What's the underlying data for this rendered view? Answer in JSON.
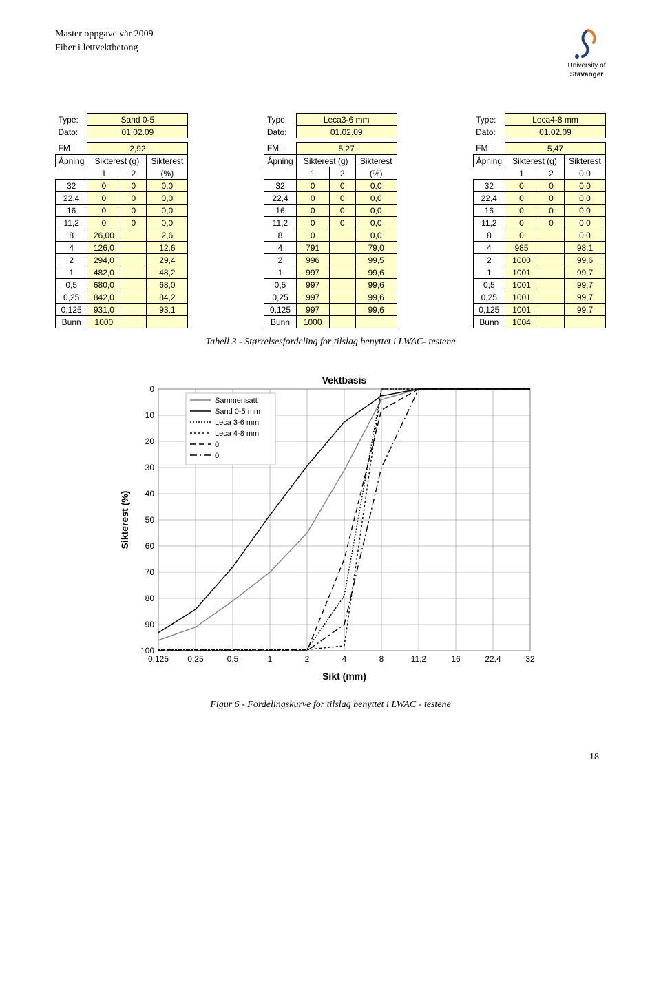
{
  "header": {
    "line1": "Master oppgave vår 2009",
    "line2": "Fiber i lettvektbetong",
    "logo_name": "University of Stavanger",
    "logo_line1": "University of",
    "logo_line2": "Stavanger"
  },
  "tables": [
    {
      "type_label": "Type:",
      "type_value": "Sand 0-5",
      "dato_label": "Dato:",
      "dato_value": "01.02.09",
      "fm_label": "FM=",
      "fm_value": "2,92",
      "col_apning": "Åpning",
      "col_sikterest_g": "Sikterest (g)",
      "col_sikterest": "Sikterest",
      "sub1": "1",
      "sub2": "2",
      "sub3": "(%)",
      "rows": [
        [
          "32",
          "0",
          "0",
          "0,0"
        ],
        [
          "22,4",
          "0",
          "0",
          "0,0"
        ],
        [
          "16",
          "0",
          "0",
          "0,0"
        ],
        [
          "11,2",
          "0",
          "0",
          "0,0"
        ],
        [
          "8",
          "26,00",
          "",
          "2,6"
        ],
        [
          "4",
          "126,0",
          "",
          "12,6"
        ],
        [
          "2",
          "294,0",
          "",
          "29,4"
        ],
        [
          "1",
          "482,0",
          "",
          "48,2"
        ],
        [
          "0,5",
          "680,0",
          "",
          "68,0"
        ],
        [
          "0,25",
          "842,0",
          "",
          "84,2"
        ],
        [
          "0,125",
          "931,0",
          "",
          "93,1"
        ],
        [
          "Bunn",
          "1000",
          "",
          ""
        ]
      ]
    },
    {
      "type_label": "Type:",
      "type_value": "Leca3-6 mm",
      "dato_label": "Dato:",
      "dato_value": "01.02.09",
      "fm_label": "FM=",
      "fm_value": "5,27",
      "col_apning": "Åpning",
      "col_sikterest_g": "Sikterest (g)",
      "col_sikterest": "Sikterest",
      "sub1": "1",
      "sub2": "2",
      "sub3": "(%)",
      "rows": [
        [
          "32",
          "0",
          "0",
          "0,0"
        ],
        [
          "22,4",
          "0",
          "0",
          "0,0"
        ],
        [
          "16",
          "0",
          "0",
          "0,0"
        ],
        [
          "11,2",
          "0",
          "0",
          "0,0"
        ],
        [
          "8",
          "0",
          "",
          "0,0"
        ],
        [
          "4",
          "791",
          "",
          "79,0"
        ],
        [
          "2",
          "996",
          "",
          "99,5"
        ],
        [
          "1",
          "997",
          "",
          "99,6"
        ],
        [
          "0,5",
          "997",
          "",
          "99,6"
        ],
        [
          "0,25",
          "997",
          "",
          "99,6"
        ],
        [
          "0,125",
          "997",
          "",
          "99,6"
        ],
        [
          "Bunn",
          "1000",
          "",
          ""
        ]
      ]
    },
    {
      "type_label": "Type:",
      "type_value": "Leca4-8 mm",
      "dato_label": "Dato:",
      "dato_value": "01.02.09",
      "fm_label": "FM=",
      "fm_value": "5,47",
      "col_apning": "Åpning",
      "col_sikterest_g": "Sikterest (g)",
      "col_sikterest": "Sikterest",
      "sub1": "1",
      "sub2": "2",
      "sub3": "0,0",
      "rows": [
        [
          "32",
          "0",
          "0",
          "0,0"
        ],
        [
          "22,4",
          "0",
          "0",
          "0,0"
        ],
        [
          "16",
          "0",
          "0",
          "0,0"
        ],
        [
          "11,2",
          "0",
          "0",
          "0,0"
        ],
        [
          "8",
          "0",
          "",
          "0,0"
        ],
        [
          "4",
          "985",
          "",
          "98,1"
        ],
        [
          "2",
          "1000",
          "",
          "99,6"
        ],
        [
          "1",
          "1001",
          "",
          "99,7"
        ],
        [
          "0,5",
          "1001",
          "",
          "99,7"
        ],
        [
          "0,25",
          "1001",
          "",
          "99,7"
        ],
        [
          "0,125",
          "1001",
          "",
          "99,7"
        ],
        [
          "Bunn",
          "1004",
          "",
          ""
        ]
      ]
    }
  ],
  "table_caption": "Tabell 3 - Størrelsesfordeling for tilslag benyttet i LWAC- testene",
  "chart": {
    "type": "line",
    "title": "Vektbasis",
    "title_fontsize": 14,
    "title_weight": "bold",
    "xlabel": "Sikt (mm)",
    "ylabel": "Sikterest (%)",
    "label_fontsize": 14,
    "label_weight": "bold",
    "tick_fontsize": 12,
    "x_categories": [
      "0,125",
      "0,25",
      "0,5",
      "1",
      "2",
      "4",
      "8",
      "11,2",
      "16",
      "22,4",
      "32"
    ],
    "y_ticks": [
      0,
      10,
      20,
      30,
      40,
      50,
      60,
      70,
      80,
      90,
      100
    ],
    "ylim": [
      0,
      100
    ],
    "y_reversed": true,
    "background_color": "#ffffff",
    "plot_border_color": "#808080",
    "grid_color": "#808080",
    "grid_on": true,
    "line_width": 1.4,
    "legend": {
      "items": [
        {
          "label": "Sammensatt",
          "color": "#808080",
          "dash": "none"
        },
        {
          "label": "Sand 0-5 mm",
          "color": "#000000",
          "dash": "none"
        },
        {
          "label": "Leca 3-6 mm",
          "color": "#000000",
          "dash": "2,2"
        },
        {
          "label": "Leca 4-8 mm",
          "color": "#000000",
          "dash": "3,3"
        },
        {
          "label": "0",
          "color": "#000000",
          "dash": "8,5"
        },
        {
          "label": "0",
          "color": "#000000",
          "dash": "10,4,2,4"
        }
      ],
      "position": "upper-left-inset",
      "fontsize": 11,
      "font_family": "Arial"
    },
    "series": [
      {
        "name": "Sammensatt",
        "color": "#808080",
        "dash": "none",
        "values": [
          96,
          91,
          81,
          70,
          55,
          31,
          4,
          0,
          0,
          0,
          0
        ]
      },
      {
        "name": "Sand 0-5 mm",
        "color": "#000000",
        "dash": "none",
        "values": [
          93.1,
          84.2,
          68.0,
          48.2,
          29.4,
          12.6,
          2.6,
          0,
          0,
          0,
          0
        ]
      },
      {
        "name": "Leca 3-6 mm",
        "color": "#000000",
        "dash": "2,2",
        "values": [
          99.6,
          99.6,
          99.6,
          99.6,
          99.5,
          79.0,
          0,
          0,
          0,
          0,
          0
        ]
      },
      {
        "name": "Leca 4-8 mm",
        "color": "#000000",
        "dash": "3,3",
        "values": [
          99.7,
          99.7,
          99.7,
          99.7,
          99.6,
          98.1,
          0,
          0,
          0,
          0,
          0
        ]
      },
      {
        "name": "0a",
        "color": "#000000",
        "dash": "8,5",
        "values": [
          100,
          100,
          100,
          100,
          100,
          65,
          8,
          0,
          0,
          0,
          0
        ]
      },
      {
        "name": "0b",
        "color": "#000000",
        "dash": "10,4,2,4",
        "values": [
          100,
          100,
          100,
          100,
          100,
          90,
          30,
          0,
          0,
          0,
          0
        ]
      }
    ]
  },
  "chart_caption": "Figur 6 - Fordelingskurve for tilslag benyttet i LWAC - testene",
  "page_number": "18",
  "colors": {
    "cell_bg": "#ffffcc",
    "border": "#000000",
    "text": "#000000",
    "logo_blue": "#20407a",
    "logo_orange": "#e07b2e"
  }
}
